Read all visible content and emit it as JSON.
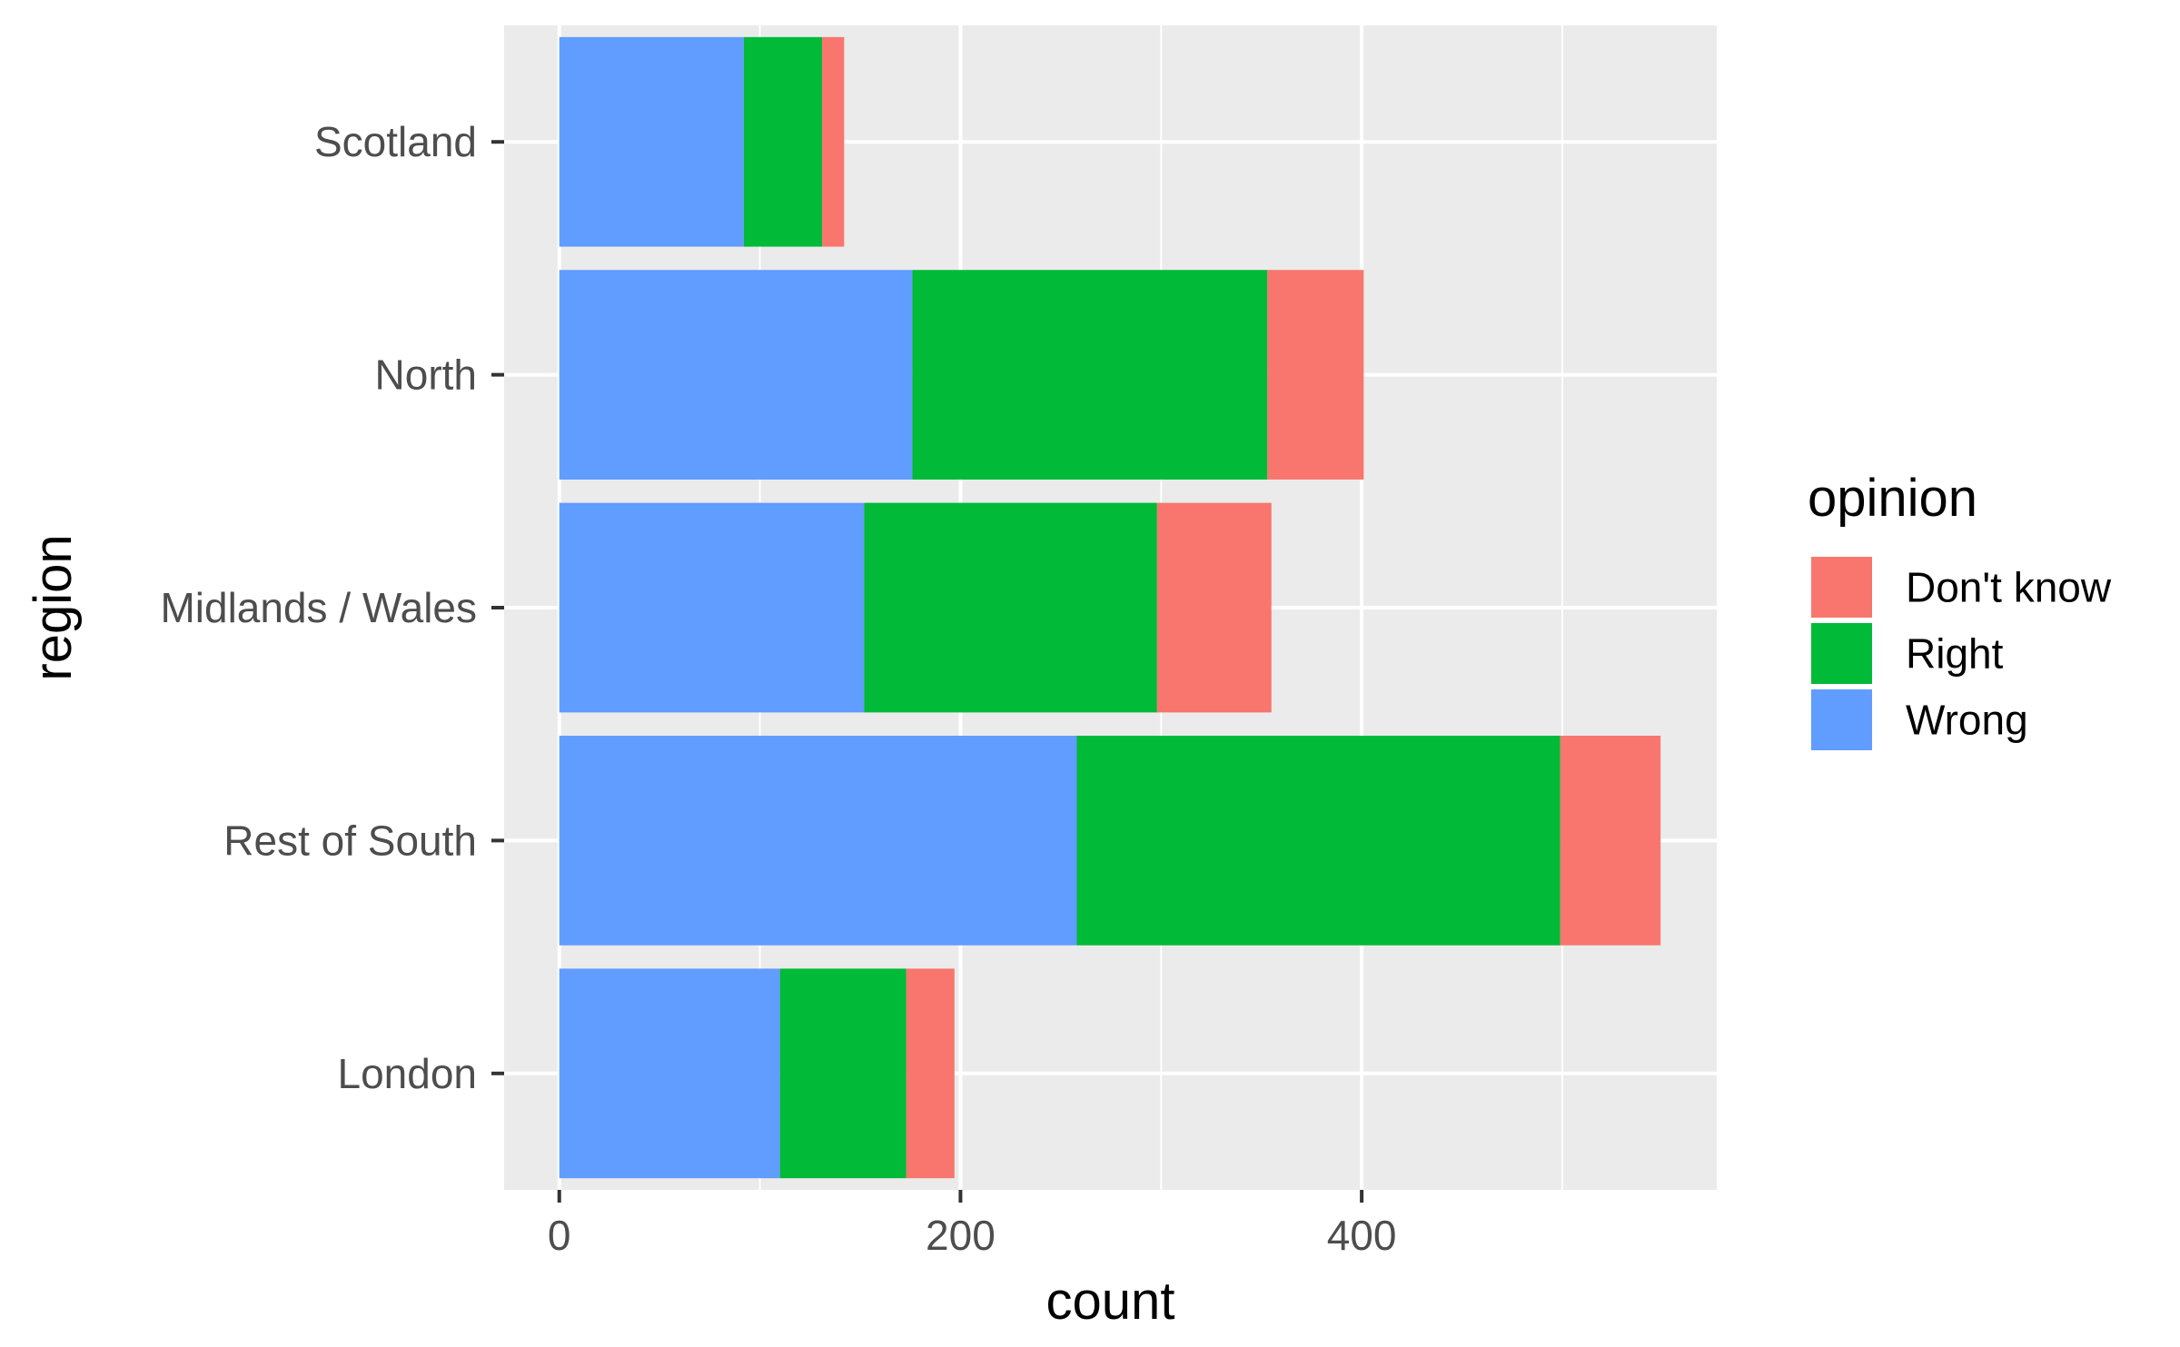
{
  "chart_data": {
    "type": "bar",
    "orientation": "horizontal",
    "stacked": true,
    "categories": [
      "London",
      "Rest of South",
      "Midlands / Wales",
      "North",
      "Scotland"
    ],
    "series": [
      {
        "name": "Wrong",
        "color": "#619CFF",
        "values": [
          110,
          258,
          152,
          176,
          92
        ]
      },
      {
        "name": "Right",
        "color": "#00BA38",
        "values": [
          63,
          241,
          146,
          177,
          39
        ]
      },
      {
        "name": "Don't know",
        "color": "#F8766D",
        "values": [
          24,
          50,
          57,
          48,
          11
        ]
      }
    ],
    "xlabel": "count",
    "ylabel": "region",
    "xlim": [
      -27.5,
      577
    ],
    "xticks": [
      0,
      200,
      400
    ],
    "xtick_labels": [
      "0",
      "200",
      "400"
    ],
    "grid": true,
    "legend": {
      "title": "opinion",
      "position": "right",
      "entries": [
        {
          "label": "Don't know",
          "color": "#F8766D"
        },
        {
          "label": "Right",
          "color": "#00BA38"
        },
        {
          "label": "Wrong",
          "color": "#619CFF"
        }
      ]
    },
    "panel_background": "#EBEBEB",
    "grid_color": "#FFFFFF"
  }
}
